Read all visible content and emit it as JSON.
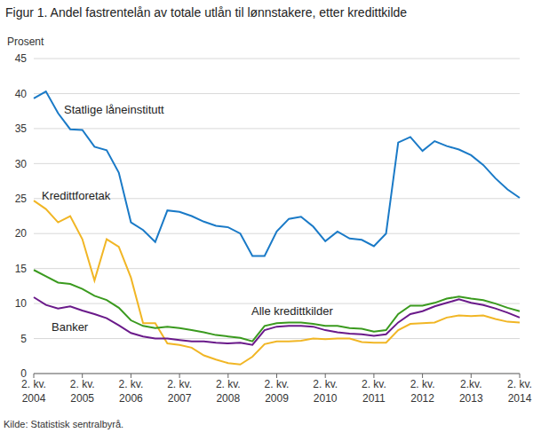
{
  "chart_data": {
    "type": "line",
    "title": "Figur 1. Andel fastrentelån av totale utlån til lønnstakere, etter kredittkilde",
    "y_label": "Prosent",
    "source": "Kilde: Statistisk sentralbyrå.",
    "categories": [
      "2. kv.\n2004",
      null,
      null,
      null,
      "2. kv.\n2005",
      null,
      null,
      null,
      "2. kv.\n2006",
      null,
      null,
      null,
      "2. kv.\n2007",
      null,
      null,
      null,
      "2. kv.\n2008",
      null,
      null,
      null,
      "2. kv.\n2009",
      null,
      null,
      null,
      "2. kv.\n2010",
      null,
      null,
      null,
      "2. kv.\n2011",
      null,
      null,
      null,
      "2. kv.\n2012",
      null,
      null,
      null,
      "2.kv.\n2013",
      null,
      null,
      null,
      "2. kv.\n2014"
    ],
    "series": [
      {
        "name": "Statlige låneinstitutt",
        "color": "#1a7ac7",
        "values": [
          39.3,
          40.3,
          37.2,
          34.9,
          34.8,
          32.4,
          31.9,
          28.7,
          21.6,
          20.5,
          18.8,
          23.3,
          23.1,
          22.5,
          21.7,
          21.1,
          20.9,
          20.0,
          16.8,
          16.8,
          20.3,
          22.1,
          22.4,
          21.0,
          18.9,
          20.3,
          19.3,
          19.1,
          18.2,
          20.0,
          33.0,
          33.8,
          31.8,
          33.2,
          32.5,
          32.0,
          31.2,
          29.8,
          27.9,
          26.3,
          25.1
        ]
      },
      {
        "name": "Kredittforetak",
        "color": "#f1b625",
        "values": [
          24.7,
          23.5,
          21.6,
          22.5,
          19.2,
          13.3,
          19.2,
          18.1,
          13.7,
          7.2,
          7.2,
          4.3,
          4.1,
          3.7,
          2.6,
          2.0,
          1.5,
          1.3,
          2.4,
          4.2,
          4.6,
          4.6,
          4.7,
          5.0,
          4.9,
          5.0,
          5.0,
          4.5,
          4.4,
          4.4,
          6.2,
          7.1,
          7.2,
          7.3,
          8.0,
          8.3,
          8.2,
          8.3,
          7.8,
          7.4,
          7.3
        ]
      },
      {
        "name": "Alle kredittkilder",
        "color": "#3a9a1e",
        "values": [
          14.8,
          13.9,
          13.0,
          12.8,
          12.1,
          11.1,
          10.5,
          9.4,
          7.6,
          6.8,
          6.5,
          6.7,
          6.5,
          6.2,
          5.9,
          5.5,
          5.3,
          5.1,
          4.6,
          6.8,
          7.2,
          7.3,
          7.3,
          7.1,
          6.8,
          6.8,
          6.5,
          6.4,
          6.0,
          6.2,
          8.5,
          9.7,
          9.7,
          10.1,
          10.7,
          11.0,
          10.7,
          10.5,
          10.0,
          9.4,
          8.9
        ]
      },
      {
        "name": "Banker",
        "color": "#6a1a8a",
        "values": [
          10.9,
          9.8,
          9.3,
          9.6,
          9.0,
          8.5,
          7.9,
          6.9,
          5.8,
          5.3,
          5.0,
          5.0,
          4.8,
          4.6,
          4.6,
          4.4,
          4.3,
          4.4,
          4.1,
          6.2,
          6.7,
          6.8,
          6.8,
          6.7,
          6.2,
          5.9,
          5.7,
          5.6,
          5.4,
          5.6,
          7.3,
          8.5,
          8.9,
          9.6,
          10.1,
          10.6,
          10.1,
          9.8,
          9.3,
          8.7,
          8.0
        ]
      }
    ],
    "ylim": [
      0,
      45
    ],
    "yticks": [
      0,
      5,
      10,
      15,
      20,
      25,
      30,
      35,
      40,
      45
    ],
    "grid": true
  }
}
